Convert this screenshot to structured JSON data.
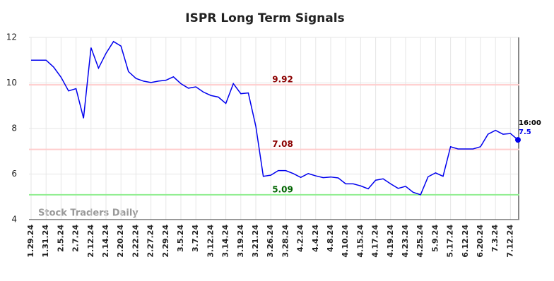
{
  "chart_data": {
    "type": "line",
    "title": "ISPR Long Term Signals",
    "watermark": "Stock Traders Daily",
    "annotation": "16:00",
    "color": "#0000ee",
    "categories": [
      "1.29.24",
      null,
      "1.31.24",
      null,
      "2.5.24",
      null,
      "2.7.24",
      null,
      "2.12.24",
      null,
      "2.14.24",
      null,
      "2.20.24",
      null,
      "2.22.24",
      null,
      "2.27.24",
      null,
      "2.29.24",
      null,
      "3.5.24",
      null,
      "3.7.24",
      null,
      "3.12.24",
      null,
      "3.14.24",
      null,
      "3.19.24",
      null,
      "3.21.24",
      null,
      "3.26.24",
      null,
      "3.28.24",
      null,
      "4.2.24",
      null,
      "4.4.24",
      null,
      "4.8.24",
      null,
      "4.10.24",
      null,
      "4.15.24",
      null,
      "4.17.24",
      null,
      "4.19.24",
      null,
      "4.23.24",
      null,
      "4.25.24",
      null,
      "5.9.24",
      null,
      "5.17.24",
      null,
      "6.12.24",
      null,
      "6.20.24",
      null,
      "7.3.24",
      null,
      "7.12.24",
      null
    ],
    "values": [
      11.0,
      11.0,
      11.0,
      10.7,
      10.25,
      9.65,
      9.75,
      8.45,
      11.55,
      10.65,
      11.3,
      11.82,
      11.62,
      10.5,
      10.2,
      10.08,
      10.02,
      10.08,
      10.12,
      10.27,
      9.97,
      9.77,
      9.83,
      9.6,
      9.45,
      9.38,
      9.1,
      9.97,
      9.53,
      9.56,
      8.1,
      5.9,
      5.95,
      6.15,
      6.15,
      6.02,
      5.85,
      6.02,
      5.92,
      5.84,
      5.87,
      5.83,
      5.57,
      5.57,
      5.48,
      5.35,
      5.73,
      5.79,
      5.57,
      5.37,
      5.46,
      5.2,
      5.09,
      5.88,
      6.05,
      5.9,
      7.2,
      7.1,
      7.1,
      7.1,
      7.2,
      7.75,
      7.92,
      7.75,
      7.78,
      7.5
    ],
    "hlines": [
      {
        "value": 9.92,
        "color": "#ffcccc",
        "label_color": "#8b0000"
      },
      {
        "value": 7.08,
        "color": "#ffcccc",
        "label_color": "#8b0000"
      },
      {
        "value": 5.09,
        "color": "#90ee90",
        "label_color": "#006400"
      }
    ],
    "ylim": [
      4,
      12
    ],
    "yticks": [
      4,
      6,
      8,
      10,
      12
    ],
    "grid": true
  }
}
